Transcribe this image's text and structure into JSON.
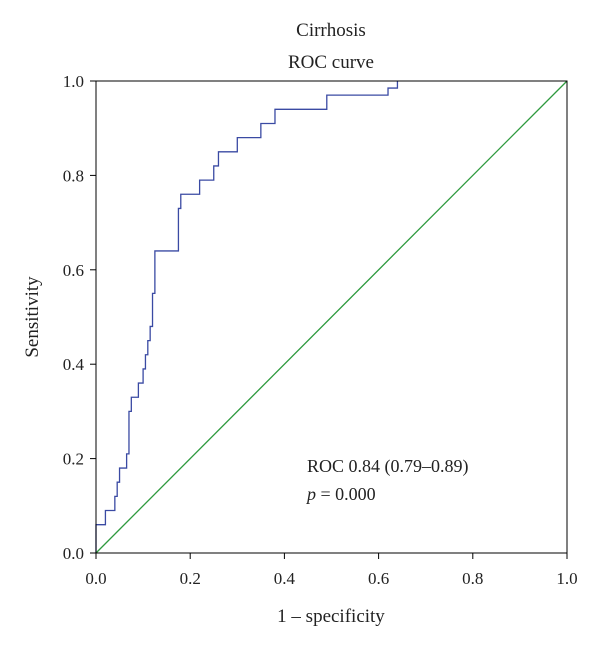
{
  "chart_data": {
    "type": "line",
    "title": "Cirrhosis",
    "subtitle": "ROC curve",
    "xlabel": "1 – specificity",
    "ylabel": "Sensitivity",
    "xlim": [
      0,
      1
    ],
    "ylim": [
      0,
      1
    ],
    "xticks": [
      "0.0",
      "0.2",
      "0.4",
      "0.6",
      "0.8",
      "1.0"
    ],
    "yticks": [
      "0.0",
      "0.2",
      "0.4",
      "0.6",
      "0.8",
      "1.0"
    ],
    "grid": false,
    "annotations": {
      "auc_line": "ROC 0.84 (0.79–0.89)",
      "p_symbol": "p",
      "p_rest": " = 0.000"
    },
    "series": [
      {
        "color": "#3a4aa3",
        "x": [
          0.0,
          0.0,
          0.02,
          0.02,
          0.04,
          0.04,
          0.045,
          0.045,
          0.05,
          0.05,
          0.065,
          0.065,
          0.07,
          0.07,
          0.075,
          0.075,
          0.09,
          0.09,
          0.1,
          0.1,
          0.105,
          0.105,
          0.11,
          0.11,
          0.115,
          0.115,
          0.12,
          0.12,
          0.125,
          0.125,
          0.175,
          0.175,
          0.18,
          0.18,
          0.22,
          0.22,
          0.25,
          0.25,
          0.26,
          0.26,
          0.3,
          0.3,
          0.35,
          0.35,
          0.38,
          0.38,
          0.49,
          0.49,
          0.62,
          0.62,
          0.64,
          0.64
        ],
        "y": [
          0.0,
          0.06,
          0.06,
          0.09,
          0.09,
          0.12,
          0.12,
          0.15,
          0.15,
          0.18,
          0.18,
          0.21,
          0.21,
          0.3,
          0.3,
          0.33,
          0.33,
          0.36,
          0.36,
          0.39,
          0.39,
          0.42,
          0.42,
          0.45,
          0.45,
          0.48,
          0.48,
          0.55,
          0.55,
          0.64,
          0.64,
          0.73,
          0.73,
          0.76,
          0.76,
          0.79,
          0.79,
          0.82,
          0.82,
          0.85,
          0.85,
          0.88,
          0.88,
          0.91,
          0.91,
          0.94,
          0.94,
          0.97,
          0.97,
          0.985,
          0.985,
          1.0
        ]
      },
      {
        "color": "#2e9a3e",
        "x": [
          0,
          1
        ],
        "y": [
          0,
          1
        ]
      }
    ]
  }
}
